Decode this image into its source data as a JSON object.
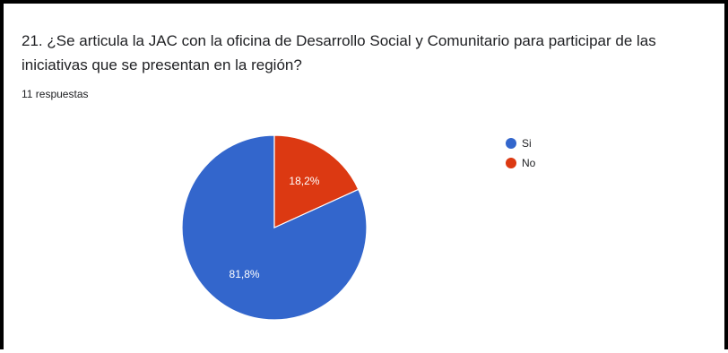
{
  "question": {
    "title": "21. ¿Se articula la JAC con la oficina de Desarrollo Social y Comunitario para participar de las iniciativas que se presentan en la región?",
    "responses": "11 respuestas"
  },
  "chart_data": {
    "type": "pie",
    "categories": [
      "Si",
      "No"
    ],
    "values": [
      81.8,
      18.2
    ],
    "labels": [
      "81,8%",
      "18,2%"
    ],
    "colors": [
      "#3366cc",
      "#dc3912"
    ],
    "legend_position": "right"
  }
}
